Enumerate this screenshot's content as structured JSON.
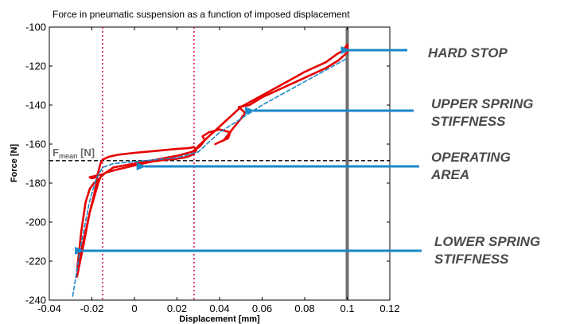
{
  "chart_data": {
    "type": "line",
    "title": "Force in pneumatic suspension as a function of imposed displacement",
    "xlabel": "Displacement [mm]",
    "ylabel": "Force [N]",
    "xlim": [
      -0.04,
      0.12
    ],
    "ylim": [
      -240,
      -100
    ],
    "x_ticks": [
      -0.04,
      -0.02,
      0,
      0.02,
      0.04,
      0.06,
      0.08,
      0.1,
      0.12
    ],
    "x_tick_labels": [
      "-0.04",
      "-0.02",
      "0",
      "0.02",
      "0.04",
      "0.06",
      "0.08",
      "0.1",
      "0.12"
    ],
    "y_ticks": [
      -240,
      -220,
      -200,
      -180,
      -160,
      -140,
      -120,
      -100
    ],
    "y_tick_labels": [
      "-240",
      "-220",
      "-200",
      "-180",
      "-160",
      "-140",
      "-120",
      "-100"
    ],
    "grid": false,
    "series": [
      {
        "style": "solid",
        "color": "#e60000",
        "x": [
          -0.027,
          -0.024,
          -0.021,
          -0.019,
          -0.018,
          -0.0175,
          -0.0175,
          -0.017,
          -0.016,
          -0.015,
          -0.012,
          -0.008,
          0.0,
          0.01,
          0.02,
          0.026,
          0.028,
          0.029,
          0.028,
          0.025,
          0.023,
          0.02,
          0.015,
          0.008,
          0.0,
          -0.008,
          -0.013,
          -0.015,
          -0.019,
          -0.021,
          -0.02,
          -0.018,
          -0.017,
          -0.019,
          -0.021,
          -0.023,
          -0.025,
          -0.027,
          -0.021,
          -0.017,
          -0.016,
          -0.014,
          -0.01,
          0.0,
          0.01,
          0.02,
          0.027,
          0.031,
          0.033,
          0.032,
          0.035,
          0.04,
          0.045,
          0.044,
          0.038,
          0.042,
          0.047,
          0.05,
          0.052,
          0.049,
          0.054,
          0.06,
          0.07,
          0.08,
          0.09,
          0.096,
          0.099,
          0.1,
          0.1,
          0.098,
          0.095,
          0.09,
          0.08,
          0.07,
          0.06,
          0.05,
          0.045,
          0.04,
          0.035,
          0.03,
          0.028
        ],
        "y": [
          -228,
          -212,
          -195,
          -186,
          -181,
          -178,
          -176,
          -174.5,
          -170,
          -168,
          -166.5,
          -165.5,
          -164.5,
          -163.5,
          -162.5,
          -162,
          -161.5,
          -163,
          -165,
          -166.5,
          -167,
          -167.5,
          -168,
          -169,
          -171,
          -173,
          -174.5,
          -175.5,
          -176.5,
          -177,
          -177.5,
          -177,
          -178,
          -180,
          -183,
          -190,
          -205,
          -225,
          -195,
          -180,
          -177,
          -175,
          -172,
          -170,
          -168,
          -166,
          -164,
          -161,
          -158,
          -156,
          -154,
          -152.5,
          -154,
          -157,
          -160,
          -158,
          -151,
          -147,
          -144,
          -141,
          -140,
          -136,
          -131,
          -126,
          -121,
          -117,
          -114,
          -113,
          -109,
          -112,
          -114,
          -118,
          -123,
          -129,
          -135,
          -141,
          -146,
          -151,
          -156,
          -161,
          -164
        ]
      },
      {
        "style": "dashed",
        "color": "#1d88c8",
        "x": [
          -0.029,
          -0.025,
          -0.021,
          -0.018,
          -0.015,
          -0.01,
          0.0,
          0.01,
          0.02,
          0.03,
          0.04,
          0.05,
          0.06,
          0.07,
          0.08,
          0.09,
          0.1
        ],
        "y": [
          -238,
          -211,
          -189,
          -178,
          -172,
          -170,
          -169,
          -168,
          -167,
          -164,
          -154,
          -147,
          -140,
          -134,
          -128,
          -122,
          -116
        ]
      }
    ],
    "reference_lines": [
      {
        "orientation": "horizontal",
        "y": -168.5,
        "style": "dashed",
        "color": "#000000",
        "label": "F",
        "label_sub": "mean",
        "label_tail": " [N]"
      },
      {
        "orientation": "vertical",
        "x": -0.015,
        "style": "dotted",
        "color": "#d4145a"
      },
      {
        "orientation": "vertical",
        "x": 0.028,
        "style": "dotted",
        "color": "#d4145a"
      },
      {
        "orientation": "vertical",
        "x": 0.1,
        "style": "solid",
        "color": "#6f6f6f"
      }
    ],
    "annotations": [
      {
        "text": "HARD STOP",
        "lines": [
          "HARD STOP"
        ],
        "arrow_target": {
          "x": 0.1,
          "y": -112
        }
      },
      {
        "text": "UPPER SPRING STIFFNESS",
        "lines": [
          "UPPER SPRING",
          "STIFFNESS"
        ],
        "arrow_target": {
          "x": 0.055,
          "y": -143
        }
      },
      {
        "text": "OPERATING AREA",
        "lines": [
          "OPERATING",
          "AREA"
        ],
        "arrow_target": {
          "x": 0.004,
          "y": -172.5
        }
      },
      {
        "text": "LOWER SPRING STIFFNESS",
        "lines": [
          "LOWER SPRING",
          "STIFFNESS"
        ],
        "arrow_target": {
          "x": -0.025,
          "y": -214
        }
      }
    ],
    "arrow_color": "#1a87c9"
  }
}
